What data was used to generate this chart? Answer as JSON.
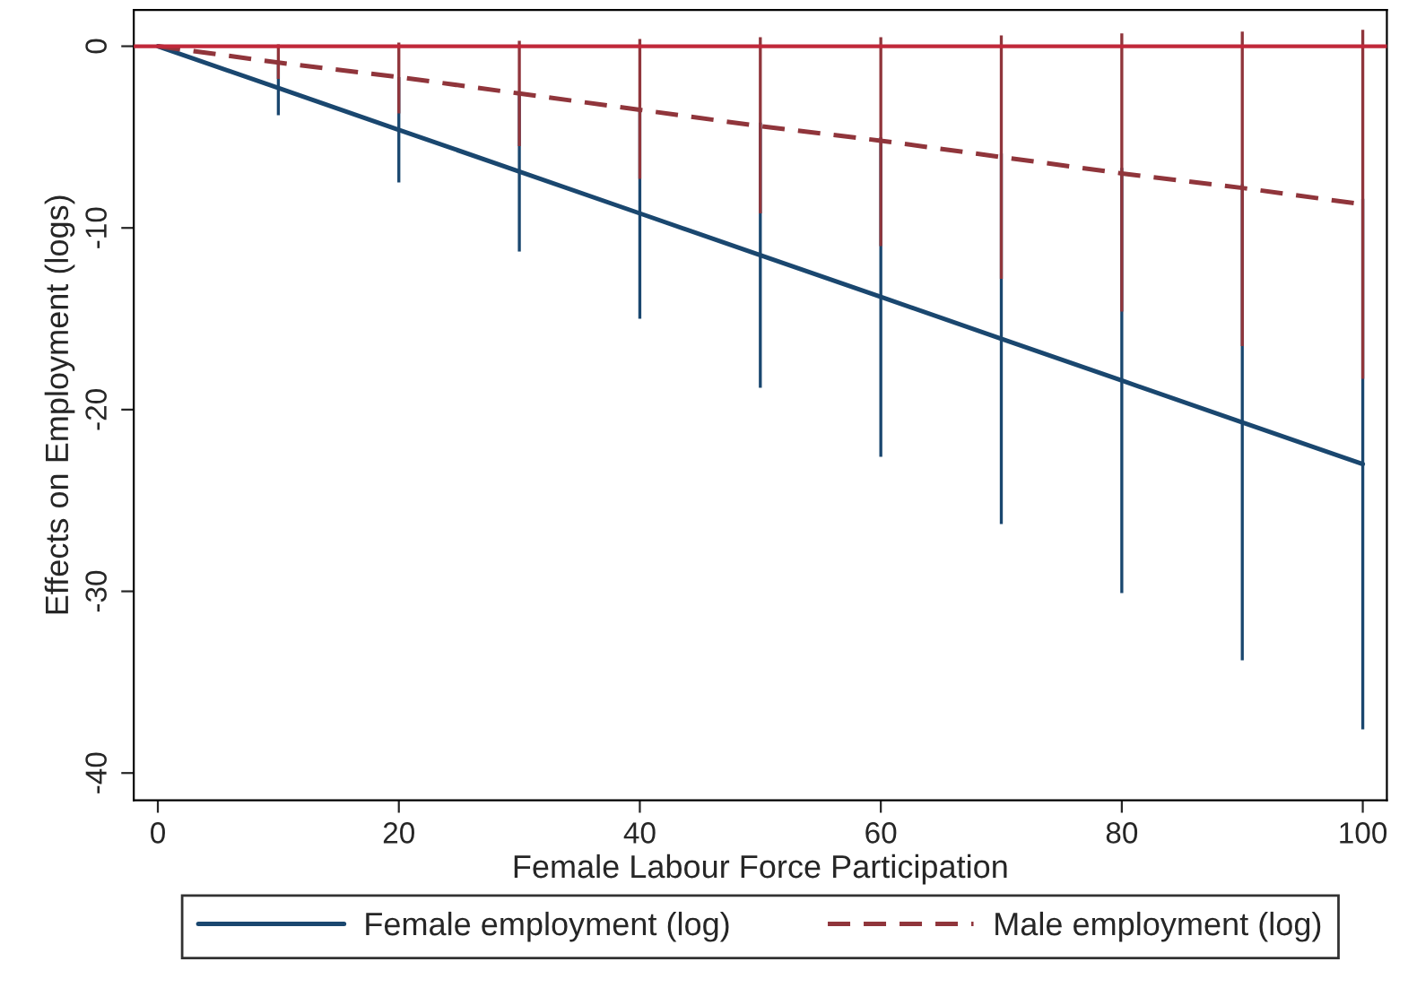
{
  "chart_data": {
    "type": "line",
    "xlabel": "Female Labour Force Participation",
    "ylabel": "Effects on Employment (logs)",
    "x": [
      0,
      10,
      20,
      30,
      40,
      50,
      60,
      70,
      80,
      90,
      100
    ],
    "series": [
      {
        "name": "Female employment (log)",
        "color": "#1a476f",
        "line_style": "solid",
        "values": [
          0,
          -2.3,
          -4.6,
          -6.9,
          -9.2,
          -11.5,
          -13.8,
          -16.1,
          -18.4,
          -20.7,
          -23.0
        ],
        "errors": [
          null,
          [
            -3.8,
            -0.8
          ],
          [
            -7.5,
            -1.7
          ],
          [
            -11.3,
            -2.5
          ],
          [
            -15.0,
            -3.4
          ],
          [
            -18.8,
            -4.2
          ],
          [
            -22.6,
            -5.0
          ],
          [
            -26.3,
            -5.9
          ],
          [
            -30.1,
            -6.7
          ],
          [
            -33.8,
            -7.6
          ],
          [
            -37.6,
            -8.4
          ]
        ]
      },
      {
        "name": "Male employment (log)",
        "color": "#90353b",
        "line_style": "dashed",
        "values": [
          0,
          -0.9,
          -1.7,
          -2.6,
          -3.5,
          -4.4,
          -5.2,
          -6.1,
          -7.0,
          -7.8,
          -8.7
        ],
        "errors": [
          null,
          [
            -1.8,
            0.1
          ],
          [
            -3.7,
            0.2
          ],
          [
            -5.5,
            0.3
          ],
          [
            -7.3,
            0.4
          ],
          [
            -9.2,
            0.5
          ],
          [
            -11.0,
            0.5
          ],
          [
            -12.8,
            0.6
          ],
          [
            -14.6,
            0.7
          ],
          [
            -16.5,
            0.8
          ],
          [
            -18.3,
            0.9
          ]
        ]
      }
    ],
    "ref_lines": [
      {
        "axis": "y",
        "value": 0,
        "color": "#c0283a"
      }
    ],
    "xlim": [
      -2,
      102
    ],
    "xticks": [
      0,
      20,
      40,
      60,
      80,
      100
    ],
    "ylim": [
      -41.5,
      2
    ],
    "yticks": [
      0,
      -10,
      -20,
      -30,
      -40
    ],
    "grid": false,
    "legend": "bottom",
    "marker": "none"
  }
}
